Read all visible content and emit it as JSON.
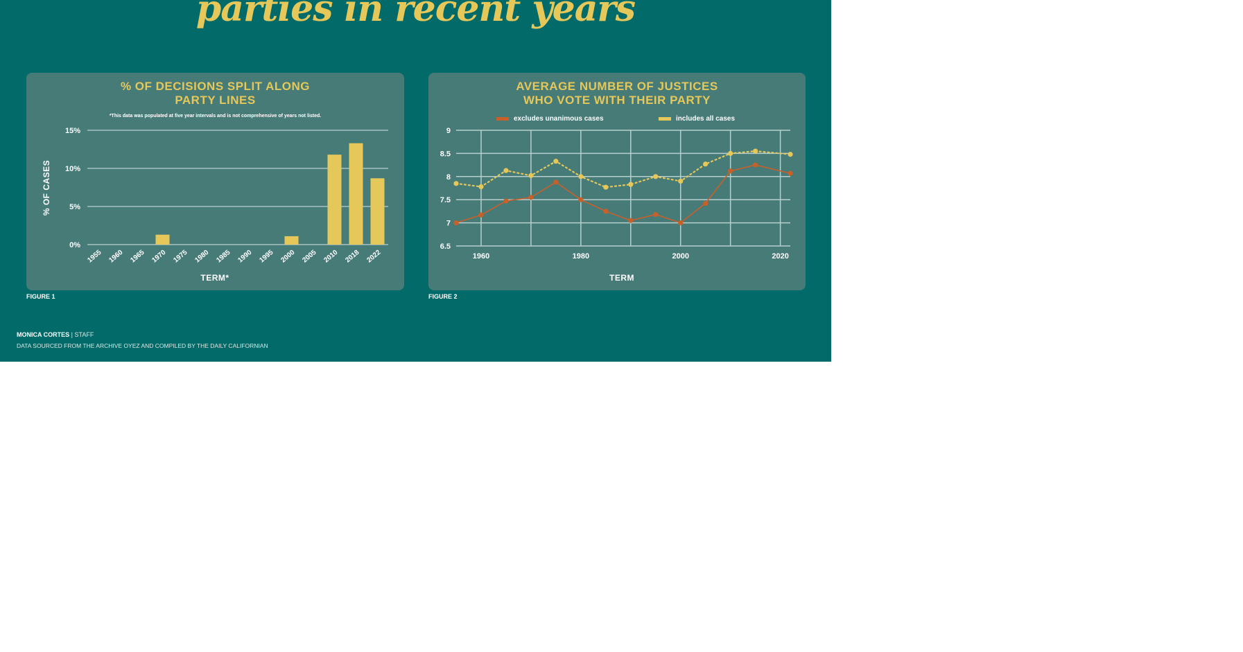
{
  "headline": "parties in recent years",
  "colors": {
    "background": "#026b69",
    "card": "#477b78",
    "accent_yellow": "#e6c85a",
    "accent_orange": "#c8602a",
    "grid": "#b9cfcd"
  },
  "credit": {
    "author": "MONICA CORTES",
    "separator": " | ",
    "role": "STAFF"
  },
  "source": "DATA SOURCED FROM THE ARCHIVE OYEZ AND COMPILED BY THE DAILY CALIFORNIAN",
  "chart_data": [
    {
      "type": "bar",
      "figure_label": "FIGURE 1",
      "title_line1": "% OF DECISIONS SPLIT ALONG",
      "title_line2": "PARTY LINES",
      "note": "*This data was populated at five year intervals and is not comprehensive of years not listed.",
      "xlabel": "TERM*",
      "ylabel": "% OF CASES",
      "ylim": [
        0,
        15
      ],
      "yticks": [
        0,
        5,
        10,
        15
      ],
      "ytick_labels": [
        "0%",
        "5%",
        "10%",
        "15%"
      ],
      "grid": true,
      "color": "#e6c85a",
      "categories": [
        "1955",
        "1960",
        "1965",
        "1970",
        "1975",
        "1980",
        "1985",
        "1990",
        "1995",
        "2000",
        "2005",
        "2010",
        "2018",
        "2022"
      ],
      "values": [
        0,
        0,
        0,
        1.3,
        0,
        0,
        0,
        0,
        0,
        1.1,
        0,
        11.8,
        13.3,
        8.7
      ]
    },
    {
      "type": "line",
      "figure_label": "FIGURE 2",
      "title_line1": "AVERAGE NUMBER OF JUSTICES",
      "title_line2": "WHO VOTE WITH THEIR PARTY",
      "xlabel": "TERM",
      "ylabel": "",
      "xlim": [
        1955,
        2022
      ],
      "ylim": [
        6.5,
        9
      ],
      "xticks": [
        1960,
        1980,
        2000,
        2020
      ],
      "yticks": [
        6.5,
        7,
        7.5,
        8,
        8.5,
        9
      ],
      "ytick_labels": [
        "6.5",
        "7",
        "7.5",
        "8",
        "8.5",
        "9"
      ],
      "x_gridlines": [
        1960,
        1970,
        1980,
        1990,
        2000,
        2010,
        2020
      ],
      "grid": true,
      "legend_position": "top",
      "series": [
        {
          "name": "excludes unanimous cases",
          "color": "#c8602a",
          "style": "solid",
          "x": [
            1955,
            1960,
            1965,
            1970,
            1975,
            1980,
            1985,
            1990,
            1995,
            2000,
            2005,
            2010,
            2015,
            2022
          ],
          "values": [
            7.0,
            7.17,
            7.47,
            7.55,
            7.88,
            7.5,
            7.25,
            7.05,
            7.18,
            7.0,
            7.42,
            8.12,
            8.25,
            8.07
          ]
        },
        {
          "name": "includes all cases",
          "color": "#e6c85a",
          "style": "dotted",
          "x": [
            1955,
            1960,
            1965,
            1970,
            1975,
            1980,
            1985,
            1990,
            1995,
            2000,
            2005,
            2010,
            2015,
            2022
          ],
          "values": [
            7.85,
            7.78,
            8.13,
            8.02,
            8.33,
            8.0,
            7.77,
            7.83,
            8.0,
            7.9,
            8.27,
            8.5,
            8.55,
            8.48
          ]
        }
      ]
    }
  ]
}
